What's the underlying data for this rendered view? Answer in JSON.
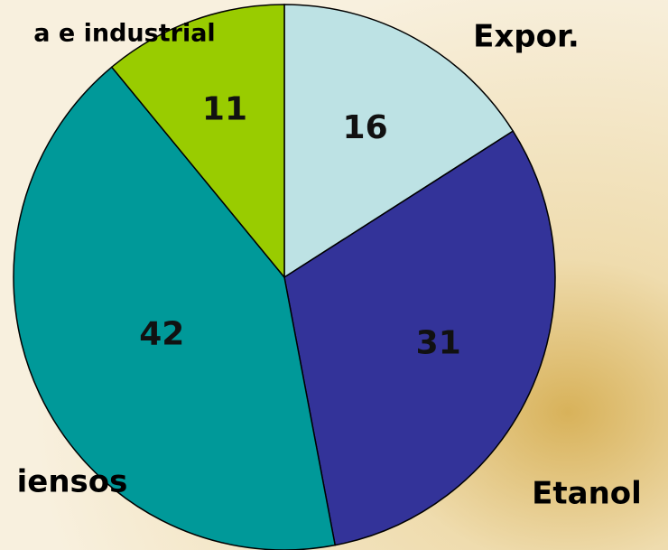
{
  "chart_data": {
    "type": "pie",
    "categories": [
      "Expor.",
      "Etanol",
      "iensos",
      "a e industrial"
    ],
    "values": [
      16,
      31,
      42,
      11
    ],
    "colors": [
      "#bde2e4",
      "#333399",
      "#009999",
      "#99cc00"
    ]
  }
}
